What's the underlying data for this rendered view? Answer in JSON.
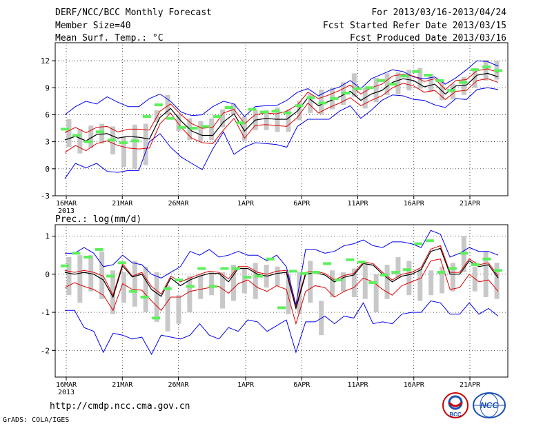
{
  "header": {
    "title": "DERF/NCC/BCC Monthly Forecast",
    "member_size": "Member Size=40",
    "variable_label": "Mean Surf. Temp.: °C",
    "forecast_period": "For 2013/03/16-2013/04/24",
    "started_refer": "Fcst Started Refer Date 2013/03/15",
    "produced": "Fcst Produced Date 2013/03/16"
  },
  "footer": {
    "url": "http://cmdp.ncc.cma.gov.cn",
    "grads": "GrADS: COLA/IGES",
    "logo_left_text": "BCC",
    "logo_right_text": "NCC"
  },
  "colors": {
    "envelope": "#0000ee",
    "spread": "#dd0000",
    "mean": "#000000",
    "box": "#c8c8c8",
    "obs": "#5cf05c"
  },
  "chart_data": [
    {
      "type": "line",
      "title": "Mean Surf. Temp.: °C",
      "x_tick_labels": [
        "16MAR",
        "21MAR",
        "26MAR",
        "1APR",
        "6APR",
        "11APR",
        "16APR",
        "21APR"
      ],
      "x_tick_days": [
        1,
        6,
        11,
        17,
        22,
        27,
        32,
        37
      ],
      "year_label": "2013",
      "days": 39,
      "ylim": [
        -3,
        14
      ],
      "yticks": [
        -3,
        0,
        3,
        6,
        9,
        12
      ],
      "series": [
        {
          "name": "ensemble mean",
          "values": [
            3.2,
            3.6,
            3.1,
            3.8,
            3.9,
            3.4,
            3.6,
            3.5,
            3.3,
            5.7,
            6.7,
            5.3,
            4.2,
            3.7,
            3.7,
            5.2,
            6.1,
            4.2,
            5.4,
            5.6,
            5.5,
            5.5,
            6.4,
            7.9,
            7.0,
            7.5,
            8.0,
            8.6,
            7.6,
            8.3,
            8.7,
            9.6,
            10.0,
            9.8,
            9.1,
            9.4,
            8.3,
            9.2,
            9.3,
            10.4,
            10.6,
            10.2
          ]
        },
        {
          "name": "upper spread",
          "values": [
            4.0,
            4.6,
            4.0,
            4.6,
            4.7,
            4.1,
            4.4,
            4.4,
            4.3,
            6.4,
            7.2,
            6.0,
            5.0,
            4.5,
            4.6,
            6.2,
            6.6,
            5.0,
            6.0,
            6.2,
            6.1,
            6.4,
            7.1,
            8.5,
            7.8,
            8.2,
            8.7,
            9.3,
            8.3,
            9.0,
            9.4,
            10.3,
            10.5,
            10.3,
            9.7,
            10.0,
            8.8,
            9.8,
            9.9,
            10.9,
            11.1,
            10.7
          ]
        },
        {
          "name": "lower spread",
          "values": [
            1.8,
            2.6,
            2.0,
            2.8,
            3.1,
            2.6,
            2.3,
            2.2,
            2.3,
            5.0,
            6.2,
            4.6,
            3.4,
            2.9,
            2.8,
            4.3,
            5.6,
            3.4,
            4.8,
            4.9,
            4.8,
            4.7,
            5.7,
            7.3,
            6.2,
            6.8,
            7.3,
            7.9,
            7.0,
            7.6,
            8.1,
            9.0,
            9.5,
            9.2,
            8.5,
            8.7,
            7.7,
            8.6,
            8.7,
            9.8,
            10.0,
            9.6
          ]
        },
        {
          "name": "ensemble max",
          "values": [
            6.0,
            6.9,
            7.5,
            7.2,
            8.0,
            7.4,
            6.9,
            6.9,
            7.8,
            8.3,
            7.5,
            6.3,
            5.9,
            6.0,
            6.9,
            7.5,
            7.2,
            5.8,
            6.9,
            7.0,
            7.0,
            7.6,
            8.5,
            8.9,
            8.1,
            8.7,
            9.1,
            9.8,
            8.9,
            10.0,
            10.5,
            11.0,
            10.8,
            10.2,
            10.0,
            10.2,
            9.4,
            10.1,
            11.0,
            12.0,
            11.9,
            11.4
          ]
        },
        {
          "name": "ensemble min",
          "values": [
            -1.1,
            0.6,
            0.1,
            0.6,
            -0.3,
            -0.4,
            -0.2,
            -0.2,
            3.0,
            3.9,
            2.4,
            1.3,
            0.6,
            -0.1,
            2.2,
            4.1,
            1.6,
            2.4,
            2.9,
            2.8,
            2.7,
            2.4,
            4.7,
            5.5,
            5.5,
            5.5,
            6.4,
            7.0,
            5.6,
            6.5,
            7.6,
            8.2,
            8.1,
            7.7,
            7.6,
            7.1,
            6.8,
            7.8,
            7.7,
            8.8,
            9.0,
            8.8
          ]
        }
      ],
      "box_ranges": [
        [
          2.4,
          5.5
        ],
        [
          1.7,
          4.4
        ],
        [
          2.3,
          4.8
        ],
        [
          2.8,
          5.0
        ],
        [
          1.6,
          4.7
        ],
        [
          0.2,
          3.6
        ],
        [
          0.0,
          4.9
        ],
        [
          0.4,
          5.0
        ],
        [
          5.2,
          6.5
        ],
        [
          6.0,
          8.2
        ],
        [
          4.2,
          6.1
        ],
        [
          3.2,
          5.6
        ],
        [
          3.1,
          5.3
        ],
        [
          3.2,
          5.6
        ],
        [
          4.6,
          6.6
        ],
        [
          6.0,
          7.2
        ],
        [
          3.1,
          5.8
        ],
        [
          4.3,
          6.5
        ],
        [
          4.3,
          6.5
        ],
        [
          4.1,
          6.8
        ],
        [
          4.1,
          6.6
        ],
        [
          5.4,
          7.5
        ],
        [
          6.2,
          8.3
        ],
        [
          6.0,
          8.8
        ],
        [
          6.6,
          9.0
        ],
        [
          7.1,
          9.6
        ],
        [
          8.0,
          10.6
        ],
        [
          6.7,
          9.0
        ],
        [
          7.4,
          10.1
        ],
        [
          8.2,
          10.6
        ],
        [
          8.3,
          10.7
        ],
        [
          8.7,
          11.0
        ],
        [
          8.9,
          11.2
        ],
        [
          8.6,
          10.5
        ],
        [
          7.6,
          9.8
        ],
        [
          7.7,
          9.4
        ],
        [
          8.2,
          10.2
        ],
        [
          9.0,
          11.2
        ],
        [
          9.8,
          12.1
        ],
        [
          9.9,
          12.0
        ]
      ],
      "observed": [
        4.4,
        3.7,
        3.0,
        4.1,
        3.2,
        2.9,
        3.1,
        5.8,
        7.1,
        5.6,
        4.6,
        4.5,
        4.7,
        5.8,
        6.8,
        5.1,
        6.6,
        6.3,
        6.4,
        6.2,
        7.0,
        7.9,
        7.3,
        7.8,
        8.4,
        8.9,
        9.0,
        9.8,
        9.4,
        10.3,
        10.8,
        10.4,
        9.8,
        8.7,
        9.6,
        11.0,
        11.3,
        10.9
      ]
    },
    {
      "type": "line",
      "title": "Prec.: log(mm/d)",
      "x_tick_labels": [
        "16MAR",
        "21MAR",
        "26MAR",
        "1APR",
        "6APR",
        "11APR",
        "16APR",
        "21APR"
      ],
      "x_tick_days": [
        1,
        6,
        11,
        17,
        22,
        27,
        32,
        37
      ],
      "year_label": "2013",
      "days": 39,
      "ylim": [
        -2.7,
        1.3
      ],
      "yticks": [
        -2,
        -1,
        0,
        1
      ],
      "series": [
        {
          "name": "ensemble mean",
          "values": [
            0.05,
            0.0,
            0.05,
            0.0,
            -0.15,
            -0.6,
            0.22,
            -0.07,
            0.0,
            -0.4,
            -0.58,
            -0.1,
            -0.3,
            -0.15,
            -0.05,
            0.02,
            0.02,
            -0.2,
            0.15,
            0.15,
            0.0,
            -0.05,
            0.02,
            0.05,
            -0.9,
            0.0,
            0.04,
            -0.02,
            -0.2,
            -0.08,
            -0.02,
            0.28,
            0.24,
            0.0,
            -0.2,
            -0.05,
            0.0,
            0.12,
            0.6,
            0.68,
            0.0,
            0.0,
            0.35,
            0.2,
            0.25,
            -0.1
          ]
        },
        {
          "name": "upper spread",
          "values": [
            0.1,
            0.05,
            0.1,
            0.05,
            -0.05,
            -0.55,
            0.28,
            -0.05,
            0.05,
            -0.32,
            -0.52,
            -0.05,
            -0.2,
            -0.1,
            0.0,
            0.08,
            0.05,
            -0.12,
            0.2,
            0.2,
            0.05,
            0.0,
            0.08,
            0.1,
            -0.85,
            0.05,
            0.08,
            0.02,
            -0.15,
            -0.03,
            0.02,
            0.32,
            0.28,
            0.05,
            -0.15,
            0.0,
            0.05,
            0.18,
            0.66,
            0.75,
            0.05,
            0.05,
            0.4,
            0.25,
            0.3,
            -0.05
          ]
        },
        {
          "name": "lower spread",
          "values": [
            -0.35,
            -0.22,
            -0.32,
            -0.4,
            -0.55,
            -0.95,
            -0.25,
            -0.4,
            -0.42,
            -0.7,
            -0.95,
            -0.6,
            -0.6,
            -0.45,
            -0.4,
            -0.35,
            -0.32,
            -0.5,
            -0.25,
            -0.15,
            -0.35,
            -0.45,
            -0.3,
            -0.4,
            -1.3,
            -0.45,
            -0.3,
            -0.35,
            -0.6,
            -0.45,
            -0.35,
            -0.1,
            -0.2,
            -0.4,
            -0.55,
            -0.3,
            -0.2,
            -0.1,
            0.35,
            0.4,
            -0.4,
            -0.35,
            0.0,
            -0.2,
            -0.15,
            -0.45
          ]
        },
        {
          "name": "ensemble max",
          "values": [
            0.55,
            0.55,
            0.7,
            0.55,
            0.2,
            0.25,
            0.5,
            0.3,
            0.25,
            0.0,
            -0.1,
            0.05,
            0.2,
            0.6,
            0.5,
            0.65,
            0.45,
            0.5,
            0.6,
            0.5,
            0.5,
            0.35,
            0.5,
            0.2,
            -0.8,
            0.65,
            0.65,
            0.55,
            0.6,
            0.75,
            0.8,
            0.9,
            0.75,
            0.7,
            0.85,
            0.85,
            0.8,
            0.7,
            1.15,
            1.05,
            0.45,
            0.55,
            0.7,
            0.6,
            0.6,
            0.5
          ]
        },
        {
          "name": "ensemble min",
          "values": [
            -0.95,
            -0.95,
            -1.4,
            -1.5,
            -2.05,
            -1.55,
            -1.6,
            -1.7,
            -1.65,
            -2.1,
            -1.6,
            -1.65,
            -1.7,
            -1.6,
            -1.3,
            -1.6,
            -1.7,
            -1.4,
            -1.5,
            -1.2,
            -1.25,
            -1.5,
            -1.35,
            -1.2,
            -2.05,
            -1.25,
            -1.25,
            -1.1,
            -1.3,
            -1.1,
            -1.15,
            -0.75,
            -1.3,
            -1.25,
            -1.3,
            -1.05,
            -1.0,
            -1.0,
            -0.7,
            -0.75,
            -1.05,
            -1.05,
            -0.75,
            -1.05,
            -0.9,
            -1.1
          ]
        }
      ],
      "box_ranges": [
        [
          -0.55,
          0.45
        ],
        [
          -0.75,
          0.5
        ],
        [
          -0.45,
          0.5
        ],
        [
          -0.65,
          0.6
        ],
        [
          -1.05,
          0.1
        ],
        [
          -0.75,
          0.05
        ],
        [
          -0.85,
          0.35
        ],
        [
          -1.0,
          0.2
        ],
        [
          -1.25,
          0.05
        ],
        [
          -1.5,
          -0.3
        ],
        [
          -1.3,
          -0.55
        ],
        [
          -1.0,
          -0.05
        ],
        [
          -0.65,
          0.0
        ],
        [
          -0.55,
          0.05
        ],
        [
          -0.9,
          0.05
        ],
        [
          -0.7,
          0.25
        ],
        [
          -0.5,
          0.15
        ],
        [
          -0.65,
          0.3
        ],
        [
          -0.35,
          0.25
        ],
        [
          -0.3,
          0.2
        ],
        [
          -1.05,
          0.0
        ],
        [
          -1.05,
          0.05
        ],
        [
          -0.75,
          0.35
        ],
        [
          -1.6,
          -0.7
        ],
        [
          -0.6,
          0.1
        ],
        [
          -0.45,
          0.05
        ],
        [
          -0.6,
          0.15
        ],
        [
          -0.65,
          0.25
        ],
        [
          -1.0,
          0.0
        ],
        [
          -0.65,
          0.25
        ],
        [
          -0.1,
          0.45
        ],
        [
          -0.55,
          0.35
        ],
        [
          -0.7,
          0.15
        ],
        [
          -0.55,
          0.1
        ],
        [
          -0.5,
          0.2
        ],
        [
          -0.45,
          0.3
        ],
        [
          0.05,
          1.0
        ],
        [
          -0.45,
          0.2
        ],
        [
          -0.6,
          0.6
        ],
        [
          -0.65,
          0.3
        ]
      ],
      "observed": [
        0.22,
        0.55,
        0.45,
        0.65,
        -0.05,
        0.3,
        -0.45,
        -0.6,
        -1.15,
        -0.38,
        -0.15,
        -0.32,
        0.15,
        -0.32,
        0.15,
        0.15,
        -0.08,
        -0.05,
        0.4,
        -0.88,
        0.08,
        0.02,
        0.05,
        0.28,
        -0.15,
        0.38,
        0.32,
        -0.22,
        -0.02,
        0.05,
        0.12,
        0.8,
        0.88,
        0.05,
        0.15,
        0.55,
        0.25,
        0.4,
        0.1
      ]
    }
  ]
}
